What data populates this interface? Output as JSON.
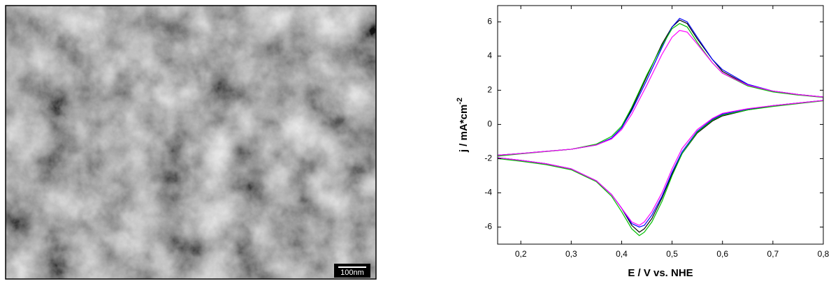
{
  "image": {
    "scale_bar": "100nm"
  },
  "chart_data": {
    "type": "line",
    "xlabel": "E / V vs. NHE",
    "ylabel": {
      "text": "j / mA*cm",
      "superscript": "-2"
    },
    "x": [
      0.155,
      0.2,
      0.3,
      0.35,
      0.38,
      0.4,
      0.42,
      0.45,
      0.48,
      0.5,
      0.515,
      0.53,
      0.55,
      0.58,
      0.6,
      0.65,
      0.7,
      0.75,
      0.8,
      0.8,
      0.75,
      0.7,
      0.65,
      0.6,
      0.58,
      0.55,
      0.52,
      0.5,
      0.48,
      0.46,
      0.445,
      0.435,
      0.42,
      0.4,
      0.38,
      0.35,
      0.3,
      0.25,
      0.2,
      0.155
    ],
    "series": [
      {
        "color": "#000000",
        "values": [
          -1.8,
          -1.7,
          -1.45,
          -1.2,
          -0.8,
          -0.2,
          0.9,
          2.8,
          4.7,
          5.7,
          6.1,
          5.9,
          5.0,
          3.8,
          3.1,
          2.3,
          1.95,
          1.75,
          1.6,
          1.4,
          1.25,
          1.1,
          0.85,
          0.5,
          0.2,
          -0.5,
          -1.7,
          -2.9,
          -4.3,
          -5.5,
          -6.1,
          -6.3,
          -5.9,
          -4.9,
          -4.1,
          -3.3,
          -2.6,
          -2.3,
          -2.1,
          -1.95
        ]
      },
      {
        "color": "#0000ff",
        "values": [
          -1.8,
          -1.7,
          -1.45,
          -1.2,
          -0.8,
          -0.2,
          0.8,
          2.6,
          4.5,
          5.7,
          6.2,
          6.0,
          5.1,
          3.8,
          3.2,
          2.35,
          1.95,
          1.75,
          1.6,
          1.4,
          1.25,
          1.1,
          0.9,
          0.6,
          0.3,
          -0.4,
          -1.6,
          -2.8,
          -4.2,
          -5.3,
          -5.9,
          -6.0,
          -5.8,
          -4.9,
          -4.1,
          -3.3,
          -2.6,
          -2.3,
          -2.1,
          -1.95
        ]
      },
      {
        "color": "#00c000",
        "values": [
          -1.85,
          -1.72,
          -1.45,
          -1.15,
          -0.7,
          -0.1,
          1.0,
          2.9,
          4.6,
          5.6,
          5.9,
          5.7,
          4.8,
          3.6,
          3.0,
          2.25,
          1.9,
          1.72,
          1.58,
          1.38,
          1.22,
          1.05,
          0.85,
          0.55,
          0.25,
          -0.45,
          -1.7,
          -3.0,
          -4.5,
          -5.7,
          -6.3,
          -6.5,
          -6.1,
          -5.1,
          -4.2,
          -3.35,
          -2.65,
          -2.35,
          -2.15,
          -2.0
        ]
      },
      {
        "color": "#ff00ff",
        "values": [
          -1.8,
          -1.7,
          -1.45,
          -1.2,
          -0.85,
          -0.3,
          0.6,
          2.3,
          4.1,
          5.1,
          5.5,
          5.4,
          4.7,
          3.6,
          3.0,
          2.3,
          1.95,
          1.75,
          1.6,
          1.4,
          1.25,
          1.1,
          0.92,
          0.65,
          0.35,
          -0.3,
          -1.4,
          -2.6,
          -4.0,
          -5.1,
          -5.7,
          -5.9,
          -5.7,
          -4.9,
          -4.1,
          -3.3,
          -2.6,
          -2.3,
          -2.1,
          -1.95
        ]
      }
    ],
    "xlim": [
      0.154,
      0.8
    ],
    "ylim": [
      -7,
      6.95
    ],
    "xticks": [
      {
        "value": 0.2,
        "label": "0,2"
      },
      {
        "value": 0.3,
        "label": "0,3"
      },
      {
        "value": 0.4,
        "label": "0,4"
      },
      {
        "value": 0.5,
        "label": "0,5"
      },
      {
        "value": 0.6,
        "label": "0,6"
      },
      {
        "value": 0.7,
        "label": "0,7"
      },
      {
        "value": 0.8,
        "label": "0,8"
      }
    ],
    "yticks": [
      -6,
      -4,
      -2,
      0,
      2,
      4,
      6
    ]
  }
}
